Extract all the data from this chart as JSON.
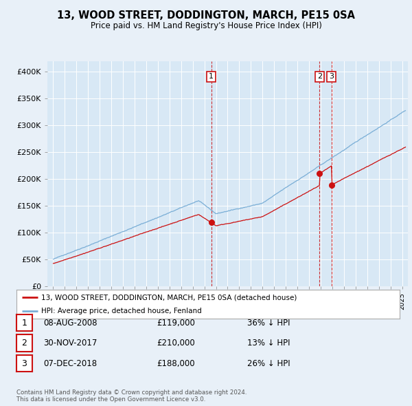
{
  "title": "13, WOOD STREET, DODDINGTON, MARCH, PE15 0SA",
  "subtitle": "Price paid vs. HM Land Registry's House Price Index (HPI)",
  "background_color": "#e8f0f8",
  "plot_bg_color": "#d8e8f5",
  "legend_label_red": "13, WOOD STREET, DODDINGTON, MARCH, PE15 0SA (detached house)",
  "legend_label_blue": "HPI: Average price, detached house, Fenland",
  "annotations": [
    {
      "num": 1,
      "date": "08-AUG-2008",
      "price": "£119,000",
      "pct": "36% ↓ HPI",
      "x_year": 2008.59
    },
    {
      "num": 2,
      "date": "30-NOV-2017",
      "price": "£210,000",
      "pct": "13% ↓ HPI",
      "x_year": 2017.91
    },
    {
      "num": 3,
      "date": "07-DEC-2018",
      "price": "£188,000",
      "pct": "26% ↓ HPI",
      "x_year": 2018.93
    }
  ],
  "copyright_text": "Contains HM Land Registry data © Crown copyright and database right 2024.\nThis data is licensed under the Open Government Licence v3.0.",
  "yticks": [
    0,
    50000,
    100000,
    150000,
    200000,
    250000,
    300000,
    350000,
    400000
  ],
  "ytick_labels": [
    "£0",
    "£50K",
    "£100K",
    "£150K",
    "£200K",
    "£250K",
    "£300K",
    "£350K",
    "£400K"
  ],
  "xmin": 1994.5,
  "xmax": 2025.5,
  "ymin": 0,
  "ymax": 420000,
  "red_color": "#cc1111",
  "blue_color": "#7aaed6"
}
